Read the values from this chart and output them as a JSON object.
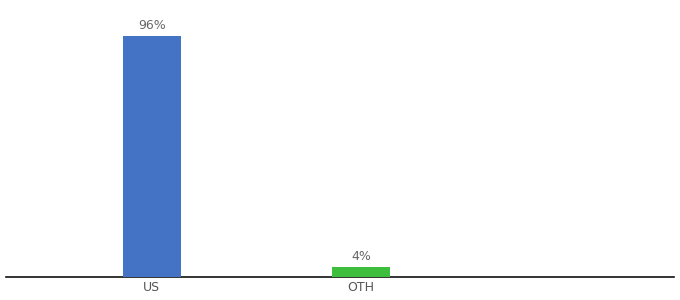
{
  "categories": [
    "US",
    "OTH"
  ],
  "values": [
    96,
    4
  ],
  "bar_colors": [
    "#4472c4",
    "#3dbf3d"
  ],
  "labels": [
    "96%",
    "4%"
  ],
  "ylim": [
    0,
    108
  ],
  "background_color": "#ffffff",
  "tick_fontsize": 9,
  "label_fontsize": 9,
  "bar_width": 0.28,
  "x_positions": [
    1,
    2
  ],
  "xlim": [
    0.3,
    3.5
  ],
  "spine_color": "#111111"
}
